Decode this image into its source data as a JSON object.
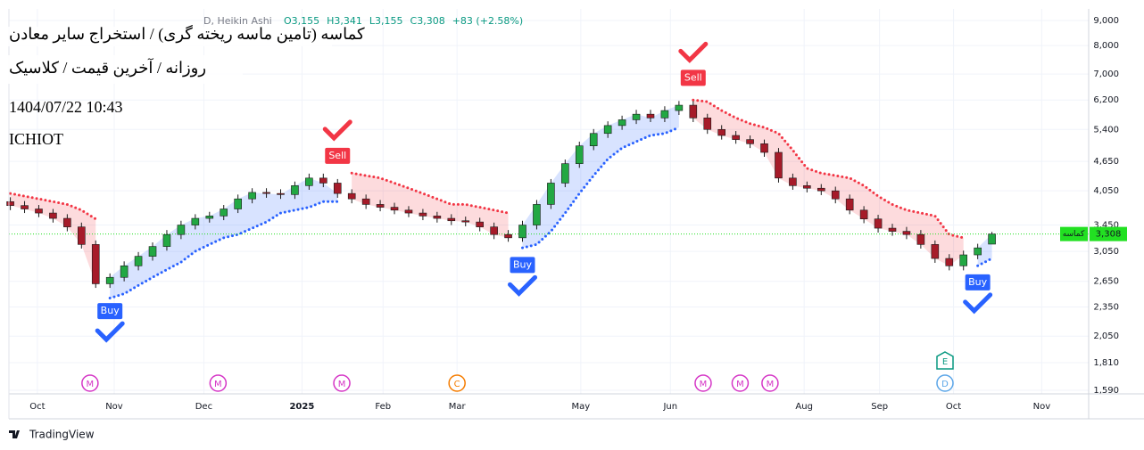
{
  "chart_data": {
    "type": "candlestick",
    "title_lines": [
      "کماسه (تامین ماسه ریخته گری) / استخراج سایر معادن",
      "روزانه / آخرین قیمت / کلاسیک",
      "1404/07/22 10:43",
      "ICHIOT"
    ],
    "legend": {
      "style": "D, Heikin Ashi",
      "ohlc_labels": [
        "O3,155",
        "H3,341",
        "L3,155",
        "C3,308"
      ],
      "change_label": "+83 (+2.58%)",
      "change_color": "#089981"
    },
    "log_scale": true,
    "grid": true,
    "up_color": "#22a843",
    "down_color": "#a61b29",
    "open": [
      3850,
      3780,
      3720,
      3650,
      3560,
      3420,
      3150,
      2620,
      2700,
      2850,
      2980,
      3120,
      3300,
      3450,
      3560,
      3600,
      3720,
      3900,
      4020,
      4000,
      3980,
      4150,
      4300,
      4200,
      4000,
      3900,
      3800,
      3750,
      3700,
      3650,
      3600,
      3560,
      3520,
      3500,
      3420,
      3300,
      3250,
      3450,
      3800,
      4200,
      4600,
      5000,
      5300,
      5500,
      5650,
      5800,
      5700,
      5900,
      6050,
      5700,
      5400,
      5250,
      5150,
      5050,
      4850,
      4300,
      4150,
      4100,
      4050,
      3900,
      3700,
      3550,
      3400,
      3350,
      3300,
      3150,
      2950,
      2850,
      3000,
      3155
    ],
    "high": [
      3930,
      3860,
      3790,
      3720,
      3630,
      3490,
      3210,
      2750,
      2910,
      3040,
      3180,
      3370,
      3520,
      3630,
      3670,
      3790,
      3980,
      4100,
      4100,
      4080,
      4230,
      4390,
      4390,
      4280,
      4080,
      3980,
      3880,
      3830,
      3770,
      3720,
      3670,
      3630,
      3590,
      3570,
      3490,
      3370,
      3520,
      3880,
      4280,
      4690,
      5100,
      5410,
      5610,
      5760,
      5920,
      5920,
      6020,
      6170,
      6170,
      5810,
      5510,
      5360,
      5250,
      5150,
      4950,
      4390,
      4230,
      4180,
      4130,
      3980,
      3770,
      3620,
      3470,
      3420,
      3370,
      3210,
      3010,
      3060,
      3160,
      3341
    ],
    "low": [
      3700,
      3650,
      3580,
      3490,
      3350,
      3090,
      2570,
      2570,
      2650,
      2790,
      2920,
      3060,
      3230,
      3380,
      3490,
      3530,
      3650,
      3820,
      3920,
      3900,
      3900,
      4070,
      4120,
      3920,
      3820,
      3720,
      3680,
      3630,
      3580,
      3530,
      3490,
      3450,
      3430,
      3350,
      3230,
      3190,
      3190,
      3380,
      3720,
      4120,
      4510,
      4900,
      5190,
      5390,
      5540,
      5590,
      5590,
      5780,
      5590,
      5290,
      5150,
      5050,
      4950,
      4750,
      4210,
      4070,
      4020,
      3970,
      3820,
      3630,
      3480,
      3330,
      3280,
      3230,
      3090,
      2890,
      2790,
      2790,
      2940,
      3155
    ],
    "close": [
      3780,
      3720,
      3650,
      3560,
      3420,
      3150,
      2620,
      2700,
      2850,
      2980,
      3120,
      3300,
      3450,
      3560,
      3600,
      3720,
      3900,
      4020,
      4000,
      3980,
      4150,
      4300,
      4200,
      4000,
      3900,
      3800,
      3750,
      3700,
      3650,
      3600,
      3560,
      3520,
      3500,
      3420,
      3300,
      3250,
      3450,
      3800,
      4200,
      4600,
      5000,
      5300,
      5500,
      5650,
      5800,
      5700,
      5900,
      6050,
      5700,
      5400,
      5250,
      5150,
      5050,
      4850,
      4300,
      4150,
      4100,
      4050,
      3900,
      3700,
      3550,
      3400,
      3350,
      3300,
      3150,
      2950,
      2850,
      3000,
      3100,
      3308
    ],
    "resistance": {
      "color": "#f23645",
      "values": [
        4000,
        3950,
        3900,
        3850,
        3800,
        3700,
        3550,
        null,
        null,
        null,
        null,
        null,
        null,
        null,
        null,
        null,
        null,
        null,
        null,
        null,
        null,
        null,
        null,
        null,
        4400,
        4350,
        4300,
        4200,
        4100,
        4000,
        3900,
        3800,
        3800,
        3750,
        3700,
        3650,
        null,
        null,
        null,
        null,
        null,
        null,
        null,
        null,
        null,
        null,
        null,
        null,
        6200,
        6150,
        5900,
        5700,
        5550,
        5450,
        5300,
        4900,
        4500,
        4400,
        4350,
        4300,
        4150,
        3950,
        3800,
        3700,
        3650,
        3600,
        3300,
        3250,
        null,
        null
      ]
    },
    "support": {
      "color": "#2962ff",
      "values": [
        null,
        null,
        null,
        null,
        null,
        null,
        null,
        2450,
        2500,
        2600,
        2700,
        2800,
        2900,
        3050,
        3150,
        3250,
        3300,
        3400,
        3500,
        3650,
        3700,
        3750,
        3850,
        3850,
        null,
        null,
        null,
        null,
        null,
        null,
        null,
        null,
        null,
        null,
        null,
        null,
        3100,
        3150,
        3350,
        3650,
        4000,
        4350,
        4700,
        4950,
        5100,
        5250,
        5300,
        5450,
        null,
        null,
        null,
        null,
        null,
        null,
        null,
        null,
        null,
        null,
        null,
        null,
        null,
        null,
        null,
        null,
        null,
        null,
        null,
        null,
        2850,
        2950
      ]
    },
    "signals": [
      {
        "index": 7,
        "label": "Buy"
      },
      {
        "index": 23,
        "label": "Sell"
      },
      {
        "index": 36,
        "label": "Buy"
      },
      {
        "index": 48,
        "label": "Sell"
      },
      {
        "index": 68,
        "label": "Buy"
      }
    ],
    "events": [
      {
        "x": 5.6,
        "label": "M",
        "color": "#d535c6"
      },
      {
        "x": 14.6,
        "label": "M",
        "color": "#d535c6"
      },
      {
        "x": 23.3,
        "label": "M",
        "color": "#d535c6"
      },
      {
        "x": 31.4,
        "label": "C",
        "color": "#f57c00"
      },
      {
        "x": 48.7,
        "label": "M",
        "color": "#d535c6"
      },
      {
        "x": 51.3,
        "label": "M",
        "color": "#d535c6"
      },
      {
        "x": 53.4,
        "label": "M",
        "color": "#d535c6"
      },
      {
        "x": 65.7,
        "label": "D",
        "color": "#5aa5e8"
      },
      {
        "x": 65.7,
        "label": "E",
        "color": "#089981"
      }
    ],
    "last_price": {
      "value": 3308,
      "label": "3,308",
      "name": "کماسه",
      "color": "#22e022"
    },
    "xlim": [
      -0.1,
      75.8
    ],
    "xticks": [
      {
        "value": 1.9,
        "label": "Oct"
      },
      {
        "value": 7.3,
        "label": "Nov"
      },
      {
        "value": 13.6,
        "label": "Dec"
      },
      {
        "value": 20.5,
        "label": "2025"
      },
      {
        "value": 26.2,
        "label": "Feb"
      },
      {
        "value": 31.4,
        "label": "Mar"
      },
      {
        "value": 40.1,
        "label": "May"
      },
      {
        "value": 46.4,
        "label": "Jun"
      },
      {
        "value": 55.8,
        "label": "Aug"
      },
      {
        "value": 61.1,
        "label": "Sep"
      },
      {
        "value": 66.3,
        "label": "Oct"
      },
      {
        "value": 72.5,
        "label": "Nov"
      }
    ],
    "ylim": [
      1564,
      9500
    ],
    "yticks": [
      {
        "value": 9000,
        "label": "9,000"
      },
      {
        "value": 8000,
        "label": "8,000"
      },
      {
        "value": 7000,
        "label": "7,000"
      },
      {
        "value": 6200,
        "label": "6,200"
      },
      {
        "value": 5400,
        "label": "5,400"
      },
      {
        "value": 4650,
        "label": "4,650"
      },
      {
        "value": 4050,
        "label": "4,050"
      },
      {
        "value": 3450,
        "label": "3,450"
      },
      {
        "value": 3050,
        "label": "3,050"
      },
      {
        "value": 2650,
        "label": "2,650"
      },
      {
        "value": 2350,
        "label": "2,350"
      },
      {
        "value": 2050,
        "label": "2,050"
      },
      {
        "value": 1810,
        "label": "1,810"
      },
      {
        "value": 1590,
        "label": "1,590"
      }
    ],
    "footer": "TradingView"
  }
}
